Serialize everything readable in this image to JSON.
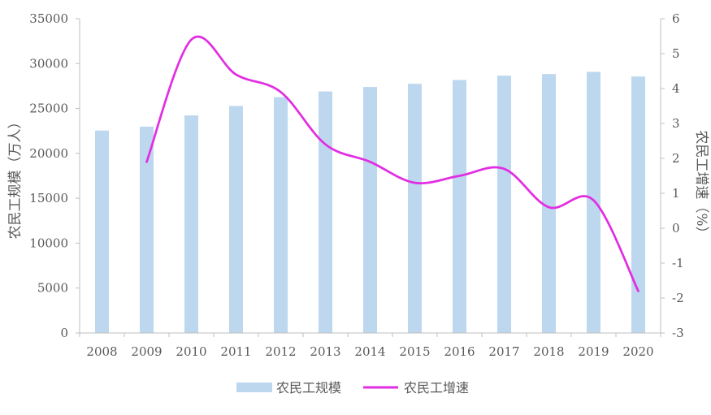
{
  "chart_data": {
    "type": "bar",
    "categories": [
      "2008",
      "2009",
      "2010",
      "2011",
      "2012",
      "2013",
      "2014",
      "2015",
      "2016",
      "2017",
      "2018",
      "2019",
      "2020"
    ],
    "series": [
      {
        "name": "农民工规模",
        "type": "bar",
        "axis": "left",
        "values": [
          22542,
          22978,
          24223,
          25278,
          26261,
          26894,
          27395,
          27747,
          28171,
          28652,
          28836,
          29077,
          28560
        ]
      },
      {
        "name": "农民工增速",
        "type": "line",
        "smooth": true,
        "axis": "right",
        "values": [
          null,
          1.9,
          5.4,
          4.4,
          3.9,
          2.4,
          1.9,
          1.3,
          1.5,
          1.7,
          0.6,
          0.8,
          -1.8
        ]
      }
    ],
    "ylabel_left": "农民工规模（万人）",
    "ylabel_right": "农民工增速（%）",
    "ylim_left": [
      0,
      35000
    ],
    "yticks_left": [
      "0",
      "5000",
      "10000",
      "15000",
      "20000",
      "25000",
      "30000",
      "35000"
    ],
    "ylim_right": [
      -3,
      6
    ],
    "yticks_right": [
      "-3",
      "-2",
      "-1",
      "0",
      "1",
      "2",
      "3",
      "4",
      "5",
      "6"
    ],
    "grid": false,
    "legend_position": "bottom",
    "colors": {
      "bar": "#bdd7ee",
      "line": "#e22ee2",
      "axis": "#bfbfbf",
      "text": "#595959"
    }
  }
}
